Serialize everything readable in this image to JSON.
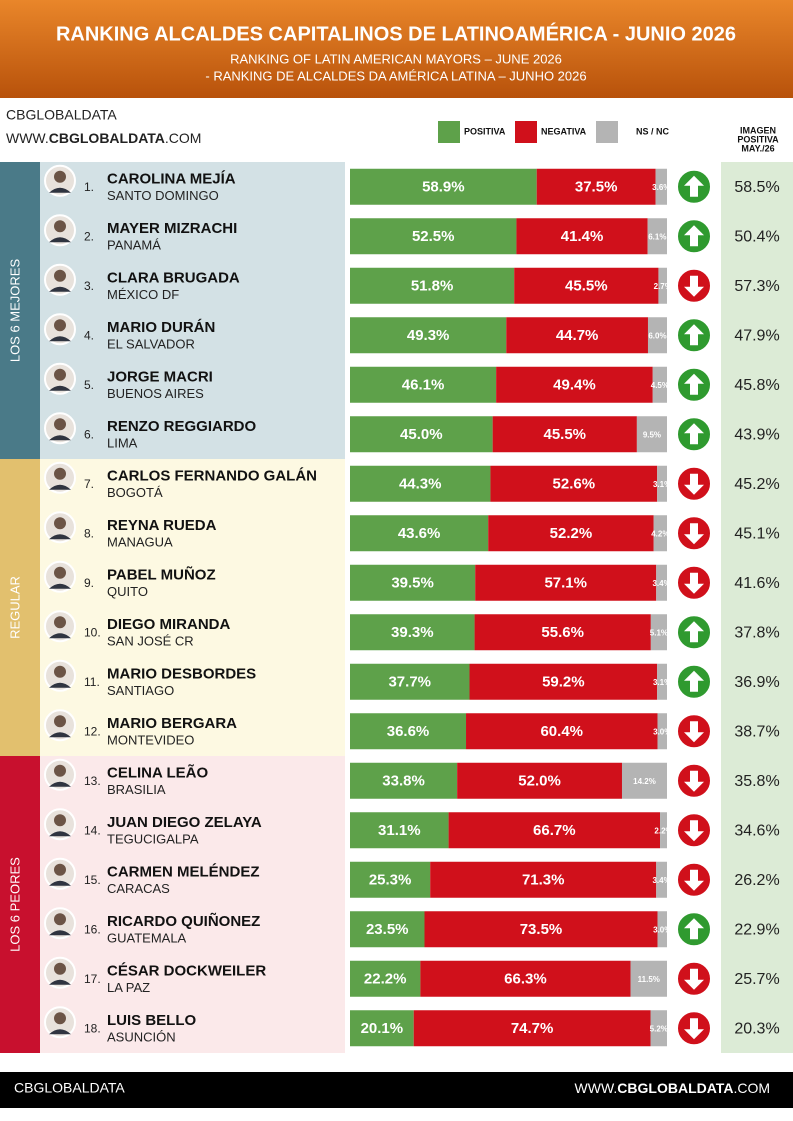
{
  "header": {
    "title": "RANKING ALCALDES CAPITALINOS DE LATINOAMÉRICA - JUNIO 2026",
    "subtitle_1": "RANKING OF LATIN AMERICAN MAYORS – JUNE 2026",
    "subtitle_2": "- RANKING DE ALCALDES DA AMÉRICA LATINA – JUNHO 2026"
  },
  "brand": {
    "name": "CBGLOBALDATA",
    "url_prefix": "WWW.",
    "url_bold": "CBGLOBALDATA",
    "url_suffix": ".COM"
  },
  "legend": [
    {
      "label": "POSITIVA",
      "color": "#5ea14a"
    },
    {
      "label": "NEGATIVA",
      "color": "#d0101b"
    },
    {
      "label": "NS / NC",
      "color": "#b4b4b4"
    }
  ],
  "prev_header": [
    "IMAGEN",
    "POSITIVA",
    "MAY./26"
  ],
  "groups": [
    {
      "label": "LOS 6 MEJORES",
      "color": "#4a7a88",
      "bg": "#d3e1e5",
      "rows": 6
    },
    {
      "label": "REGULAR",
      "color": "#e2c06e",
      "bg": "#fdf9e2",
      "rows": 6
    },
    {
      "label": "LOS 6 PEORES",
      "color": "#c8102e",
      "bg": "#fbe9ea",
      "rows": 6
    }
  ],
  "rows": [
    {
      "rank": "1.",
      "name": "CAROLINA MEJÍA",
      "city": "SANTO DOMINGO",
      "values": [
        58.9,
        37.5,
        3.6
      ],
      "value_labels": [
        "58.9%",
        "37.5%",
        "3.6%"
      ],
      "trend": "up",
      "prev": "58.5%"
    },
    {
      "rank": "2.",
      "name": "MAYER MIZRACHI",
      "city": "PANAMÁ",
      "values": [
        52.5,
        41.4,
        6.1
      ],
      "value_labels": [
        "52.5%",
        "41.4%",
        "6.1%"
      ],
      "trend": "up",
      "prev": "50.4%"
    },
    {
      "rank": "3.",
      "name": "CLARA BRUGADA",
      "city": "MÉXICO DF",
      "values": [
        51.8,
        45.5,
        2.7
      ],
      "value_labels": [
        "51.8%",
        "45.5%",
        "2.7%"
      ],
      "trend": "down",
      "prev": "57.3%"
    },
    {
      "rank": "4.",
      "name": "MARIO DURÁN",
      "city": "EL SALVADOR",
      "values": [
        49.3,
        44.7,
        6.0
      ],
      "value_labels": [
        "49.3%",
        "44.7%",
        "6.0%"
      ],
      "trend": "up",
      "prev": "47.9%"
    },
    {
      "rank": "5.",
      "name": "JORGE MACRI",
      "city": "BUENOS AIRES",
      "values": [
        46.1,
        49.4,
        4.5
      ],
      "value_labels": [
        "46.1%",
        "49.4%",
        "4.5%"
      ],
      "trend": "up",
      "prev": "45.8%"
    },
    {
      "rank": "6.",
      "name": "RENZO REGGIARDO",
      "city": "LIMA",
      "values": [
        45.0,
        45.5,
        9.5
      ],
      "value_labels": [
        "45.0%",
        "45.5%",
        "9.5%"
      ],
      "trend": "up",
      "prev": "43.9%"
    },
    {
      "rank": "7.",
      "name": "CARLOS FERNANDO GALÁN",
      "city": "BOGOTÁ",
      "values": [
        44.3,
        52.6,
        3.1
      ],
      "value_labels": [
        "44.3%",
        "52.6%",
        "3.1%"
      ],
      "trend": "down",
      "prev": "45.2%"
    },
    {
      "rank": "8.",
      "name": "REYNA RUEDA",
      "city": "MANAGUA",
      "values": [
        43.6,
        52.2,
        4.2
      ],
      "value_labels": [
        "43.6%",
        "52.2%",
        "4.2%"
      ],
      "trend": "down",
      "prev": "45.1%"
    },
    {
      "rank": "9.",
      "name": "PABEL MUÑOZ",
      "city": "QUITO",
      "values": [
        39.5,
        57.1,
        3.4
      ],
      "value_labels": [
        "39.5%",
        "57.1%",
        "3.4%"
      ],
      "trend": "down",
      "prev": "41.6%"
    },
    {
      "rank": "10.",
      "name": "DIEGO MIRANDA",
      "city": "SAN JOSÉ CR",
      "values": [
        39.3,
        55.6,
        5.1
      ],
      "value_labels": [
        "39.3%",
        "55.6%",
        "5.1%"
      ],
      "trend": "up",
      "prev": "37.8%"
    },
    {
      "rank": "11.",
      "name": "MARIO DESBORDES",
      "city": "SANTIAGO",
      "values": [
        37.7,
        59.2,
        3.1
      ],
      "value_labels": [
        "37.7%",
        "59.2%",
        "3.1%"
      ],
      "trend": "up",
      "prev": "36.9%"
    },
    {
      "rank": "12.",
      "name": "MARIO BERGARA",
      "city": "MONTEVIDEO",
      "values": [
        36.6,
        60.4,
        3.0
      ],
      "value_labels": [
        "36.6%",
        "60.4%",
        "3.0%"
      ],
      "trend": "down",
      "prev": "38.7%"
    },
    {
      "rank": "13.",
      "name": "CELINA LEÃO",
      "city": "BRASILIA",
      "values": [
        33.8,
        52.0,
        14.2
      ],
      "value_labels": [
        "33.8%",
        "52.0%",
        "14.2%"
      ],
      "trend": "down",
      "prev": "35.8%"
    },
    {
      "rank": "14.",
      "name": "JUAN DIEGO ZELAYA",
      "city": "TEGUCIGALPA",
      "values": [
        31.1,
        66.7,
        2.2
      ],
      "value_labels": [
        "31.1%",
        "66.7%",
        "2.2%"
      ],
      "trend": "down",
      "prev": "34.6%"
    },
    {
      "rank": "15.",
      "name": "CARMEN MELÉNDEZ",
      "city": "CARACAS",
      "values": [
        25.3,
        71.3,
        3.4
      ],
      "value_labels": [
        "25.3%",
        "71.3%",
        "3.4%"
      ],
      "trend": "down",
      "prev": "26.2%"
    },
    {
      "rank": "16.",
      "name": "RICARDO QUIÑONEZ",
      "city": "GUATEMALA",
      "values": [
        23.5,
        73.5,
        3.0
      ],
      "value_labels": [
        "23.5%",
        "73.5%",
        "3.0%"
      ],
      "trend": "up",
      "prev": "22.9%"
    },
    {
      "rank": "17.",
      "name": "CÉSAR DOCKWEILER",
      "city": "LA PAZ",
      "values": [
        22.2,
        66.3,
        11.5
      ],
      "value_labels": [
        "22.2%",
        "66.3%",
        "11.5%"
      ],
      "trend": "down",
      "prev": "25.7%"
    },
    {
      "rank": "18.",
      "name": "LUIS BELLO",
      "city": "ASUNCIÓN",
      "values": [
        20.1,
        74.7,
        5.2
      ],
      "value_labels": [
        "20.1%",
        "74.7%",
        "5.2%"
      ],
      "trend": "down",
      "prev": "20.3%"
    }
  ],
  "footer": {
    "left": "CBGLOBALDATA",
    "url_prefix": "WWW.",
    "url_bold": "CBGLOBALDATA",
    "url_suffix": ".COM"
  }
}
